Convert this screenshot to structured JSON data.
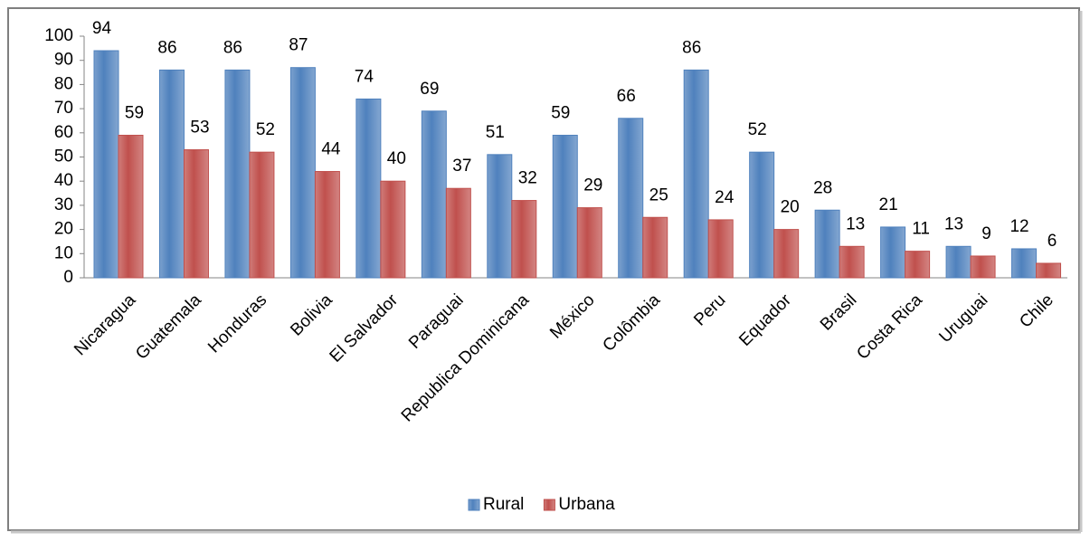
{
  "chart_data": {
    "type": "bar",
    "categories": [
      "Nicaragua",
      "Guatemala",
      "Honduras",
      "Bolivia",
      "El Salvador",
      "Paraguai",
      "Republica Dominicana",
      "México",
      "Colômbia",
      "Peru",
      "Equador",
      "Brasil",
      "Costa Rica",
      "Uruguai",
      "Chile"
    ],
    "series": [
      {
        "name": "Rural",
        "color": "#4f81bd",
        "values": [
          94,
          86,
          86,
          87,
          74,
          69,
          51,
          59,
          66,
          86,
          52,
          28,
          21,
          13,
          12
        ]
      },
      {
        "name": "Urbana",
        "color": "#c0504d",
        "values": [
          59,
          53,
          52,
          44,
          40,
          37,
          32,
          29,
          25,
          24,
          20,
          13,
          11,
          9,
          6
        ]
      }
    ],
    "ylim": [
      0,
      100
    ],
    "yticks": [
      0,
      10,
      20,
      30,
      40,
      50,
      60,
      70,
      80,
      90,
      100
    ],
    "grid": false,
    "legend": "bottom"
  }
}
